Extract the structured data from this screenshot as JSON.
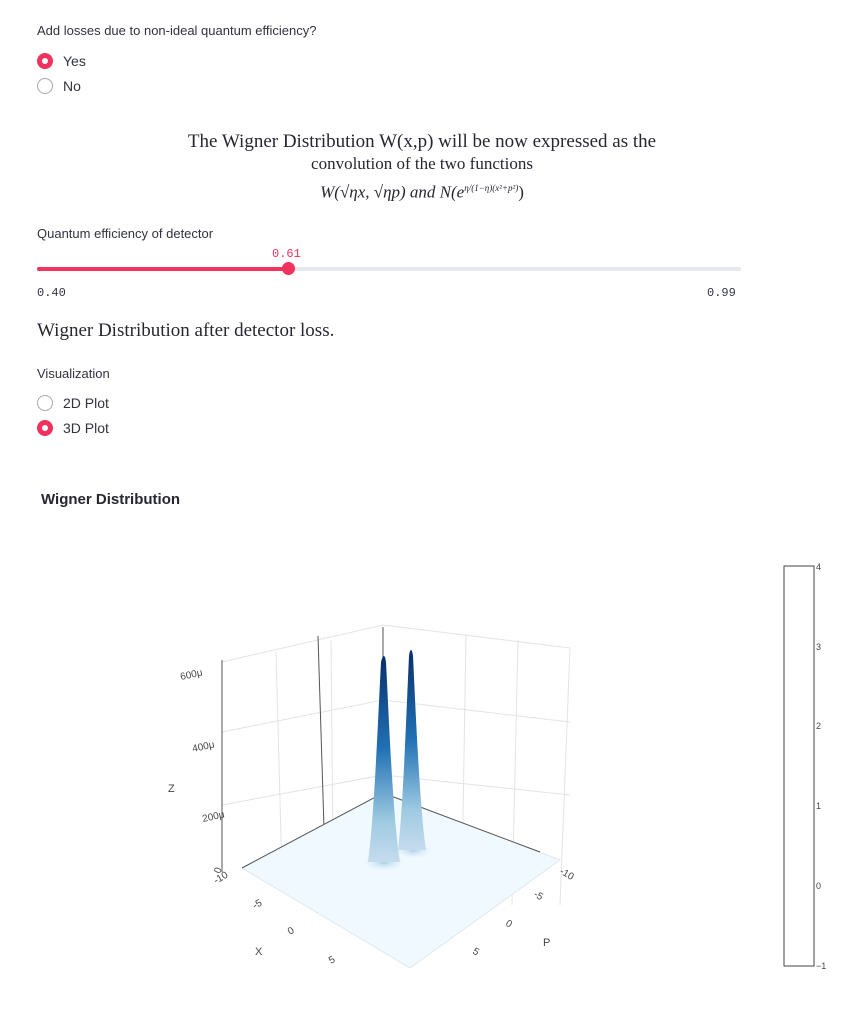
{
  "loss_question": {
    "label": "Add losses due to non-ideal quantum efficiency?",
    "options": [
      "Yes",
      "No"
    ],
    "selected": "Yes"
  },
  "formula": {
    "line1": "The Wigner Distribution W(x,p) will be now expressed as the",
    "line2": "convolution of the two functions",
    "line3_main": "W(√ηx, √ηp) and N(e",
    "line3_exp": "η/(1−η)(x²+p²)",
    "line3_end": ")"
  },
  "efficiency_slider": {
    "label": "Quantum efficiency of detector",
    "value_text": "0.61",
    "min_text": "0.40",
    "max_text": "0.99",
    "value": 0.61,
    "min": 0.4,
    "max": 0.99
  },
  "section_title": "Wigner Distribution after detector loss.",
  "visualization": {
    "label": "Visualization",
    "options": [
      "2D Plot",
      "3D Plot"
    ],
    "selected": "3D Plot"
  },
  "chart": {
    "title": "Wigner Distribution",
    "z_axis_label": "Z",
    "x_axis_label": "X",
    "p_axis_label": "P",
    "z_ticks": [
      "600μ",
      "400μ",
      "200μ",
      "0"
    ],
    "x_ticks": [
      "-10",
      "-5",
      "0",
      "5"
    ],
    "p_ticks": [
      "-10",
      "-5",
      "0",
      "5"
    ],
    "colorbar_ticks": [
      "4",
      "3",
      "2",
      "1",
      "0",
      "−1"
    ]
  },
  "colors": {
    "accent": "#f0325c",
    "peak_dark": "#08306b",
    "peak_light": "#c6dbef",
    "floor": "#f0f9ff"
  }
}
